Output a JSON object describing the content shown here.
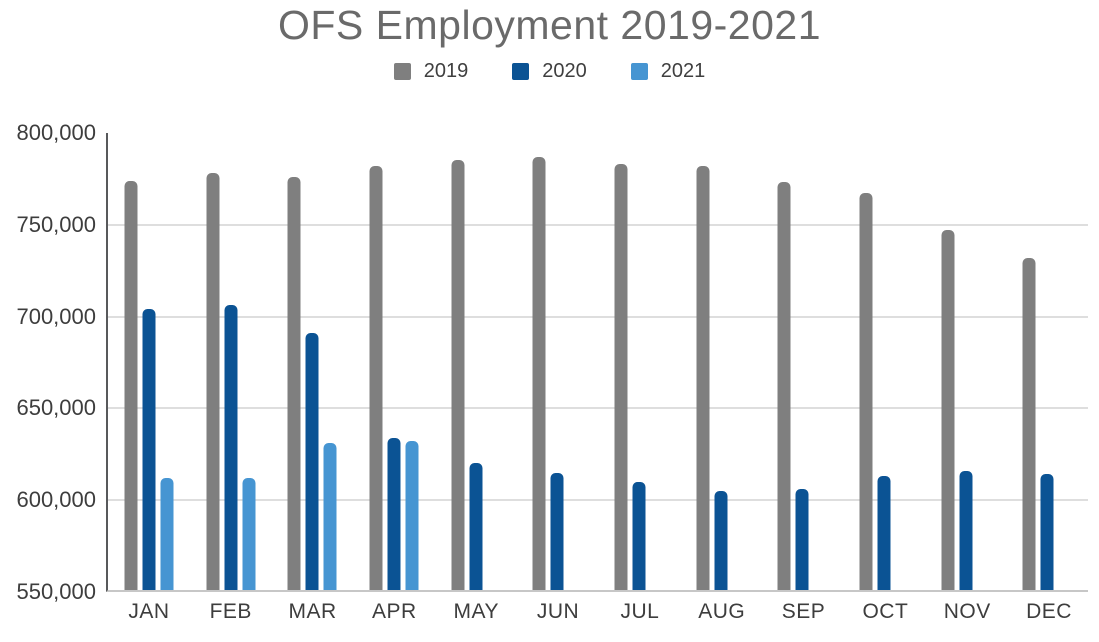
{
  "title": "OFS Employment 2019-2021",
  "chart_data": {
    "type": "bar",
    "title": "OFS Employment 2019-2021",
    "categories": [
      "JAN",
      "FEB",
      "MAR",
      "APR",
      "MAY",
      "JUN",
      "JUL",
      "AUG",
      "SEP",
      "OCT",
      "NOV",
      "DEC"
    ],
    "series": [
      {
        "name": "2019",
        "color": "#7f7f7f",
        "values": [
          773000,
          777000,
          775000,
          781000,
          784000,
          786000,
          782000,
          781000,
          772000,
          766000,
          746000,
          731000
        ]
      },
      {
        "name": "2020",
        "color": "#0b5394",
        "values": [
          703000,
          705000,
          690000,
          633000,
          619000,
          614000,
          609000,
          604000,
          605000,
          612000,
          615000,
          613000
        ]
      },
      {
        "name": "2021",
        "color": "#4695d2",
        "values": [
          611000,
          611000,
          630000,
          631000,
          null,
          null,
          null,
          null,
          null,
          null,
          null,
          null
        ]
      }
    ],
    "ylim": [
      550000,
      800000
    ],
    "ytick_step": 50000,
    "y_ticks": [
      "800,000",
      "750,000",
      "700,000",
      "650,000",
      "600,000",
      "550,000"
    ],
    "grid": true,
    "legend_position": "top",
    "colors": {
      "title_text": "#6a6a6a",
      "axis_text": "#3d3d3d",
      "gridline": "#dedede",
      "y_axis_line": "#58595b",
      "x_axis_line": "#c7c7c7",
      "background": "#ffffff"
    }
  }
}
